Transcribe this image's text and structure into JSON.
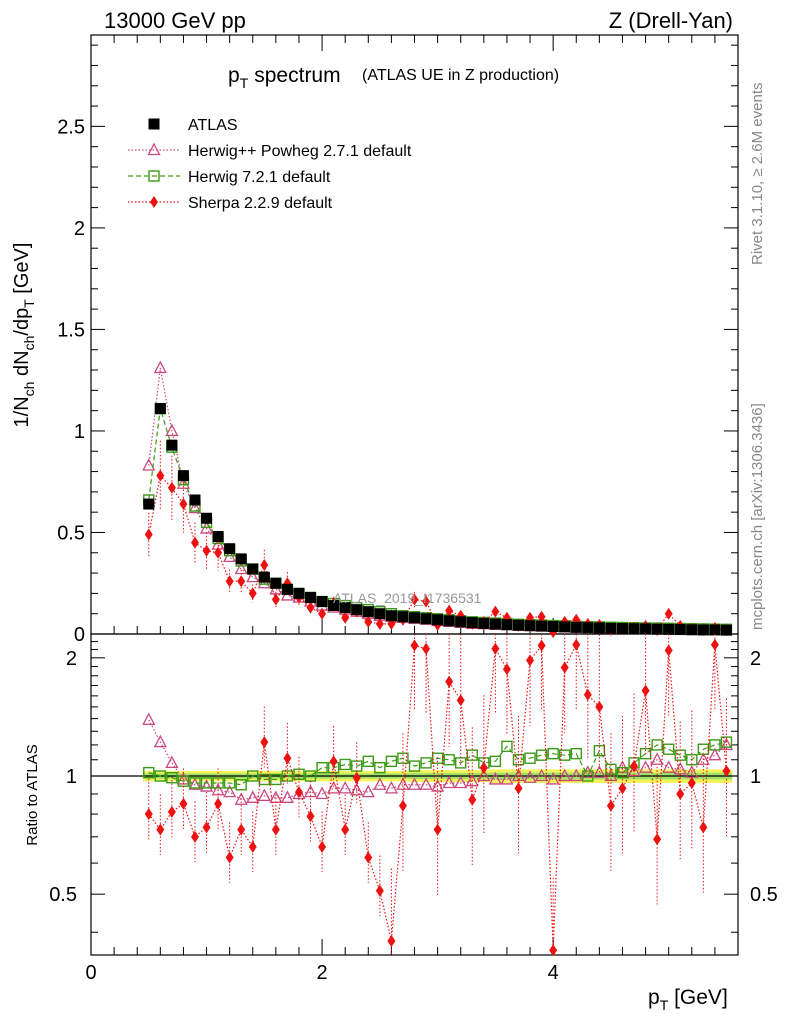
{
  "header": {
    "energy": "13000 GeV pp",
    "process": "Z (Drell-Yan)"
  },
  "side": {
    "rivet": "Rivet 3.1.10, ≥ 2.6M events",
    "mcplots": "mcplots.cern.ch [arXiv:1306.3436]"
  },
  "watermark": "ATLAS_2019_I1736531",
  "chart_data": [
    {
      "type": "scatter",
      "panel": "main",
      "title": "p_T spectrum",
      "title_main": "p",
      "title_sub": "T",
      "title_rest": "spectrum",
      "subtitle": "(ATLAS UE in Z production)",
      "ylabel": "1/N_ch dN_ch/dp_T [GeV]",
      "xlabel": "p_T [GeV]",
      "xlim": [
        0,
        5.6
      ],
      "ylim": [
        0,
        2.95
      ],
      "yticks": [
        0,
        0.5,
        1,
        1.5,
        2,
        2.5
      ],
      "ytick_labels": [
        "0",
        "0.5",
        "1",
        "1.5",
        "2",
        "2.5"
      ],
      "legend_position": "top-left",
      "x": [
        0.5,
        0.6,
        0.7,
        0.8,
        0.9,
        1.0,
        1.1,
        1.2,
        1.3,
        1.4,
        1.5,
        1.6,
        1.7,
        1.8,
        1.9,
        2.0,
        2.1,
        2.2,
        2.3,
        2.4,
        2.5,
        2.6,
        2.7,
        2.8,
        2.9,
        3.0,
        3.1,
        3.2,
        3.3,
        3.4,
        3.5,
        3.6,
        3.7,
        3.8,
        3.9,
        4.0,
        4.1,
        4.2,
        4.3,
        4.4,
        4.5,
        4.6,
        4.7,
        4.8,
        4.9,
        5.0,
        5.1,
        5.2,
        5.3,
        5.4,
        5.5
      ],
      "series": [
        {
          "name": "ATLAS",
          "marker": "square-filled",
          "color": "#000000",
          "values": [
            0.64,
            1.11,
            0.93,
            0.78,
            0.66,
            0.57,
            0.48,
            0.42,
            0.37,
            0.32,
            0.28,
            0.25,
            0.22,
            0.2,
            0.18,
            0.16,
            0.14,
            0.13,
            0.12,
            0.11,
            0.1,
            0.09,
            0.085,
            0.08,
            0.075,
            0.07,
            0.065,
            0.06,
            0.056,
            0.052,
            0.049,
            0.046,
            0.043,
            0.041,
            0.039,
            0.037,
            0.035,
            0.033,
            0.031,
            0.03,
            0.028,
            0.027,
            0.026,
            0.025,
            0.024,
            0.023,
            0.022,
            0.021,
            0.02,
            0.02,
            0.019
          ]
        },
        {
          "name": "Herwig++ Powheg 2.7.1 default",
          "marker": "triangle-open",
          "color": "#c8487f",
          "line": "dotted",
          "values": [
            0.83,
            1.31,
            1.0,
            0.74,
            0.62,
            0.52,
            0.44,
            0.38,
            0.32,
            0.28,
            0.25,
            0.22,
            0.19,
            0.18,
            0.16,
            0.14,
            0.13,
            0.12,
            0.11,
            0.1,
            0.09,
            0.085,
            0.08,
            0.075,
            0.07,
            0.065,
            0.06,
            0.055,
            0.05,
            0.048,
            0.045,
            0.043,
            0.041,
            0.039,
            0.037,
            0.035,
            0.033,
            0.031,
            0.03,
            0.028,
            0.027,
            0.026,
            0.025,
            0.024,
            0.023,
            0.022,
            0.021,
            0.02,
            0.019,
            0.019,
            0.018
          ]
        },
        {
          "name": "Herwig 7.2.1 default",
          "marker": "square-open",
          "color": "#3c9a16",
          "line": "dashed",
          "values": [
            0.66,
            1.11,
            0.92,
            0.76,
            0.63,
            0.55,
            0.47,
            0.41,
            0.36,
            0.32,
            0.27,
            0.25,
            0.22,
            0.2,
            0.18,
            0.16,
            0.15,
            0.14,
            0.13,
            0.12,
            0.11,
            0.1,
            0.09,
            0.085,
            0.08,
            0.075,
            0.07,
            0.065,
            0.06,
            0.057,
            0.054,
            0.051,
            0.048,
            0.046,
            0.044,
            0.042,
            0.04,
            0.038,
            0.036,
            0.035,
            0.033,
            0.032,
            0.031,
            0.03,
            0.029,
            0.028,
            0.027,
            0.026,
            0.025,
            0.024,
            0.023
          ]
        },
        {
          "name": "Sherpa 2.2.9 default",
          "marker": "diamond-filled",
          "color": "#ee1111",
          "line": "dotted",
          "values": [
            0.49,
            0.78,
            0.72,
            0.64,
            0.45,
            0.41,
            0.4,
            0.26,
            0.26,
            0.2,
            0.34,
            0.17,
            0.25,
            0.18,
            0.13,
            0.1,
            0.15,
            0.08,
            0.11,
            0.06,
            0.05,
            0.05,
            0.07,
            0.17,
            0.16,
            0.045,
            0.115,
            0.09,
            0.05,
            0.06,
            0.11,
            0.08,
            0.04,
            0.08,
            0.085,
            0.01,
            0.06,
            0.07,
            0.05,
            0.045,
            0.02,
            0.025,
            0.03,
            0.04,
            0.02,
            0.1,
            0.04,
            0.025,
            0.02,
            0.03,
            0.02
          ]
        }
      ]
    },
    {
      "type": "scatter",
      "panel": "ratio",
      "ylabel": "Ratio to ATLAS",
      "xlabel": "p_T [GeV]",
      "xlim": [
        0,
        5.6
      ],
      "ylim": [
        0.35,
        2.3
      ],
      "yticks": [
        0.5,
        1,
        2
      ],
      "ytick_labels": [
        "0.5",
        "1",
        "2"
      ],
      "xticks": [
        0,
        2,
        4
      ],
      "xtick_labels": [
        "0",
        "2",
        "4"
      ],
      "reference_line": 1,
      "x": [
        0.5,
        0.6,
        0.7,
        0.8,
        0.9,
        1.0,
        1.1,
        1.2,
        1.3,
        1.4,
        1.5,
        1.6,
        1.7,
        1.8,
        1.9,
        2.0,
        2.1,
        2.2,
        2.3,
        2.4,
        2.5,
        2.6,
        2.7,
        2.8,
        2.9,
        3.0,
        3.1,
        3.2,
        3.3,
        3.4,
        3.5,
        3.6,
        3.7,
        3.8,
        3.9,
        4.0,
        4.1,
        4.2,
        4.3,
        4.4,
        4.5,
        4.6,
        4.7,
        4.8,
        4.9,
        5.0,
        5.1,
        5.2,
        5.3,
        5.4,
        5.5
      ],
      "band": {
        "name": "ATLAS uncertainty",
        "color": "#f5f35a",
        "inner_color": "#9ee26a",
        "half_width": [
          0.03,
          0.03,
          0.03,
          0.03,
          0.03,
          0.03,
          0.03,
          0.03,
          0.03,
          0.03,
          0.03,
          0.03,
          0.03,
          0.03,
          0.03,
          0.03,
          0.03,
          0.03,
          0.03,
          0.03,
          0.03,
          0.03,
          0.03,
          0.035,
          0.035,
          0.035,
          0.035,
          0.035,
          0.035,
          0.035,
          0.04,
          0.04,
          0.04,
          0.04,
          0.04,
          0.04,
          0.04,
          0.04,
          0.04,
          0.04,
          0.04,
          0.04,
          0.04,
          0.04,
          0.04,
          0.04,
          0.04,
          0.04,
          0.04,
          0.04,
          0.04
        ]
      },
      "series": [
        {
          "name": "Herwig++ Powheg 2.7.1 default",
          "marker": "triangle-open",
          "color": "#c8487f",
          "line": "dotted",
          "values": [
            1.39,
            1.22,
            1.08,
            0.98,
            0.95,
            0.94,
            0.92,
            0.91,
            0.87,
            0.88,
            0.89,
            0.88,
            0.88,
            0.9,
            0.91,
            0.9,
            0.93,
            0.93,
            0.92,
            0.91,
            0.95,
            0.93,
            0.95,
            0.95,
            0.95,
            0.94,
            0.96,
            0.96,
            0.97,
            1.0,
            0.98,
            0.98,
            1.0,
            0.99,
            1.0,
            0.98,
            1.0,
            1.0,
            1.02,
            1.02,
            1.0,
            1.05,
            1.03,
            1.05,
            1.1,
            1.05,
            1.04,
            1.02,
            1.1,
            1.13,
            1.2
          ]
        },
        {
          "name": "Herwig 7.2.1 default",
          "marker": "square-open",
          "color": "#3c9a16",
          "line": "dashed",
          "values": [
            1.02,
            1.0,
            0.99,
            0.97,
            0.96,
            0.96,
            0.96,
            0.96,
            0.95,
            1.0,
            0.98,
            0.98,
            1.0,
            1.01,
            1.0,
            1.05,
            1.05,
            1.07,
            1.06,
            1.09,
            1.05,
            1.09,
            1.11,
            1.06,
            1.08,
            1.11,
            1.1,
            1.08,
            1.13,
            1.08,
            1.09,
            1.19,
            1.1,
            1.11,
            1.13,
            1.14,
            1.13,
            1.14,
            1.0,
            1.16,
            1.04,
            1.02,
            1.08,
            1.14,
            1.2,
            1.17,
            1.13,
            1.1,
            1.17,
            1.2,
            1.22
          ]
        },
        {
          "name": "Sherpa 2.2.9 default",
          "marker": "diamond-filled",
          "color": "#ee1111",
          "line": "dotted",
          "values": [
            0.8,
            0.73,
            0.81,
            0.85,
            0.7,
            0.74,
            0.85,
            0.62,
            0.73,
            0.66,
            1.22,
            0.73,
            1.11,
            0.91,
            0.79,
            0.66,
            1.09,
            0.73,
            0.99,
            0.62,
            0.51,
            0.38,
            0.84,
            2.15,
            2.11,
            0.73,
            1.74,
            1.56,
            0.87,
            1.05,
            2.11,
            1.87,
            0.93,
            1.97,
            2.15,
            0.36,
            1.89,
            2.16,
            1.61,
            1.5,
            0.84,
            0.93,
            1.06,
            1.65,
            0.69,
            2.09,
            0.9,
            0.96,
            0.74,
            2.16,
            1.03
          ]
        }
      ]
    }
  ]
}
